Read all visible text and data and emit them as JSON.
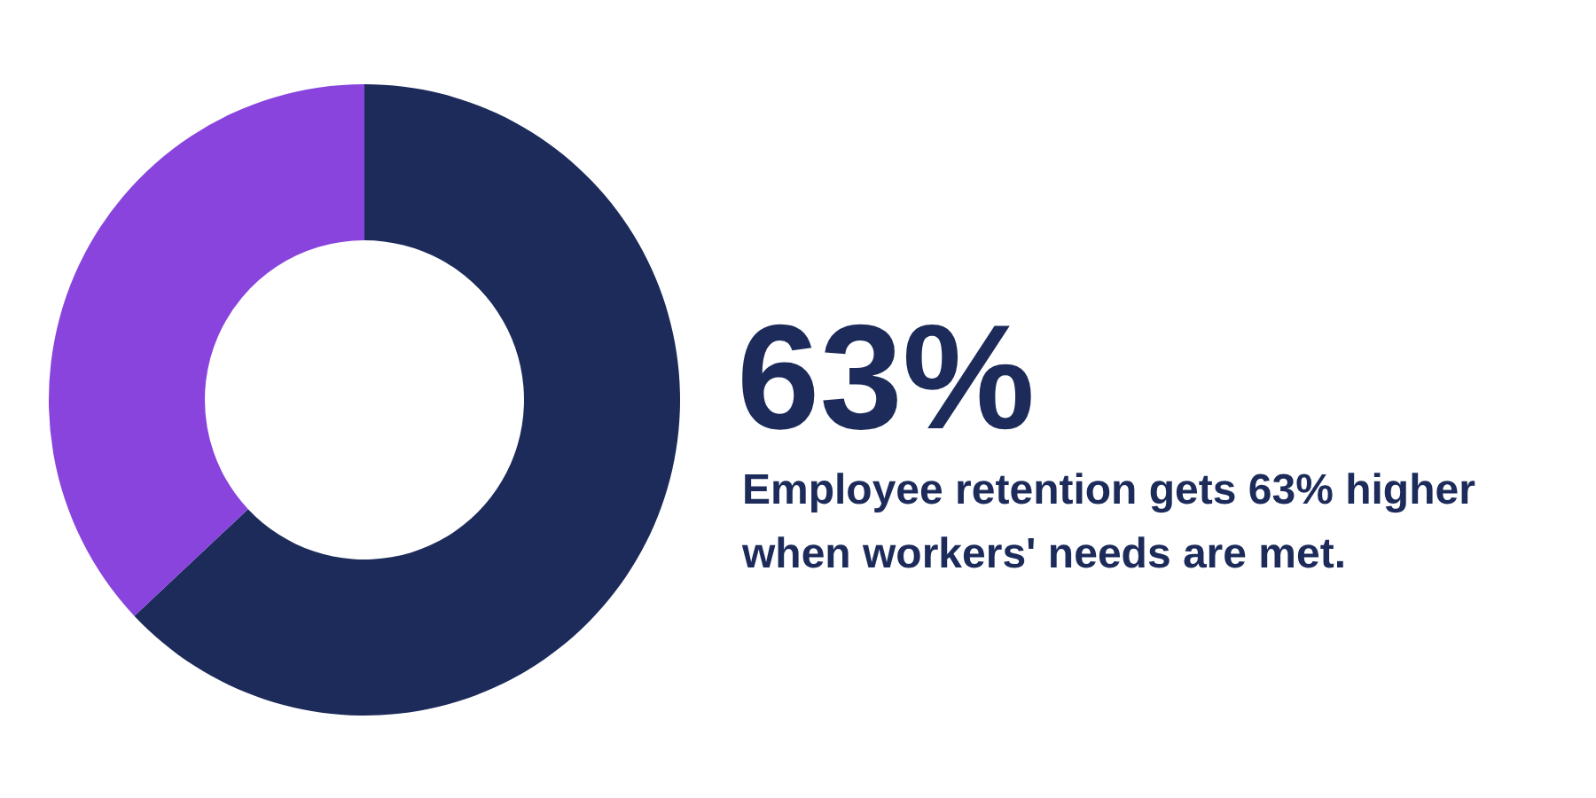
{
  "chart_data": {
    "type": "donut",
    "title": "63%",
    "subtitle": "Employee retention gets 63% higher when workers' needs are met.",
    "categories": [
      null,
      null
    ],
    "values": [
      63,
      37
    ],
    "colors": [
      "#1c2b5a",
      "#8844dd"
    ]
  }
}
